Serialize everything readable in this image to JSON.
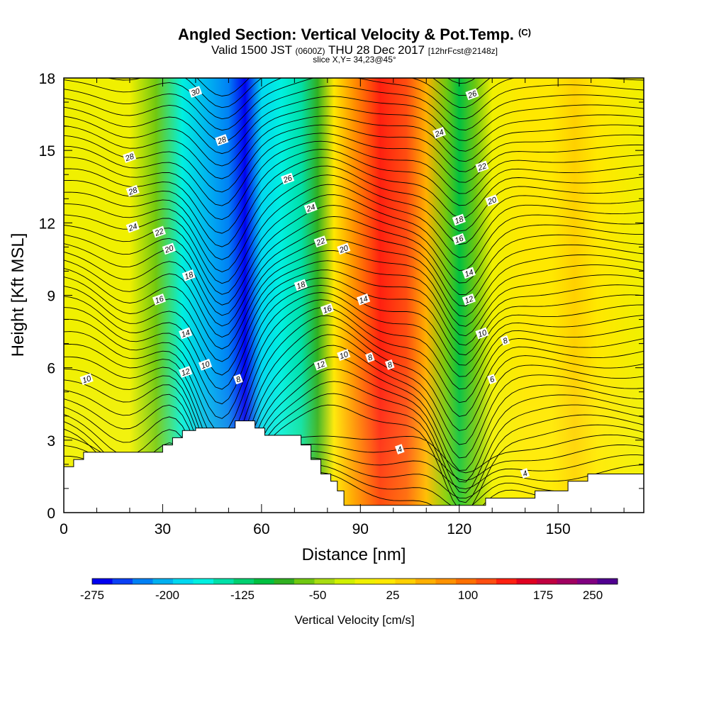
{
  "header": {
    "title": "Angled Section: Vertical Velocity & Pot.Temp.",
    "title_mark": "(C)",
    "valid_prefix": "Valid 1500 JST",
    "valid_z": "(0600Z)",
    "valid_date": "THU 28 Dec 2017",
    "forecast": "[12hrFcst@2148z]",
    "slice": "slice X,Y= 34,23@45°"
  },
  "chart_data": {
    "type": "heatmap",
    "title": "Angled Section: Vertical Velocity & Pot.Temp.",
    "xlabel": "Distance [nm]",
    "ylabel": "Height [Kft MSL]",
    "xlim": [
      0,
      176
    ],
    "ylim": [
      0,
      18
    ],
    "x_ticks": [
      0,
      30,
      60,
      90,
      120,
      150
    ],
    "y_ticks": [
      0,
      3,
      6,
      9,
      12,
      15,
      18
    ],
    "filled_field": "Vertical Velocity [cm/s]",
    "vertical_velocity_bands": [
      {
        "x": 0,
        "w": 5
      },
      {
        "x": 20,
        "w": 0
      },
      {
        "x": 28,
        "w": -60
      },
      {
        "x": 36,
        "w": -150
      },
      {
        "x": 44,
        "w": -195
      },
      {
        "x": 50,
        "w": -225
      },
      {
        "x": 55,
        "w": -275
      },
      {
        "x": 60,
        "w": -180
      },
      {
        "x": 66,
        "w": -150
      },
      {
        "x": 72,
        "w": -130
      },
      {
        "x": 77,
        "w": -75
      },
      {
        "x": 82,
        "w": 25
      },
      {
        "x": 88,
        "w": 100
      },
      {
        "x": 96,
        "w": 150
      },
      {
        "x": 104,
        "w": 140
      },
      {
        "x": 110,
        "w": 75
      },
      {
        "x": 116,
        "w": -50
      },
      {
        "x": 120,
        "w": -100
      },
      {
        "x": 125,
        "w": -50
      },
      {
        "x": 130,
        "w": 10
      },
      {
        "x": 140,
        "w": 30
      },
      {
        "x": 148,
        "w": 40
      },
      {
        "x": 155,
        "w": 60
      },
      {
        "x": 162,
        "w": 40
      },
      {
        "x": 176,
        "w": 10
      }
    ],
    "contour_field": "Potential Temperature (C)",
    "contour_labels": [
      {
        "x": 40,
        "y": 17.4,
        "v": "30"
      },
      {
        "x": 48,
        "y": 15.4,
        "v": "28"
      },
      {
        "x": 20,
        "y": 14.7,
        "v": "28"
      },
      {
        "x": 21,
        "y": 13.3,
        "v": "28"
      },
      {
        "x": 21,
        "y": 11.8,
        "v": "24"
      },
      {
        "x": 29,
        "y": 11.6,
        "v": "22"
      },
      {
        "x": 32,
        "y": 10.9,
        "v": "20"
      },
      {
        "x": 38,
        "y": 9.8,
        "v": "18"
      },
      {
        "x": 29,
        "y": 8.8,
        "v": "16"
      },
      {
        "x": 37,
        "y": 7.4,
        "v": "14"
      },
      {
        "x": 37,
        "y": 5.8,
        "v": "12"
      },
      {
        "x": 43,
        "y": 6.1,
        "v": "10"
      },
      {
        "x": 53,
        "y": 5.5,
        "v": "8"
      },
      {
        "x": 7,
        "y": 5.5,
        "v": "10"
      },
      {
        "x": 68,
        "y": 13.8,
        "v": "26"
      },
      {
        "x": 75,
        "y": 12.6,
        "v": "24"
      },
      {
        "x": 78,
        "y": 11.2,
        "v": "22"
      },
      {
        "x": 85,
        "y": 10.9,
        "v": "20"
      },
      {
        "x": 72,
        "y": 9.4,
        "v": "18"
      },
      {
        "x": 80,
        "y": 8.4,
        "v": "16"
      },
      {
        "x": 91,
        "y": 8.8,
        "v": "14"
      },
      {
        "x": 78,
        "y": 6.1,
        "v": "12"
      },
      {
        "x": 85,
        "y": 6.5,
        "v": "10"
      },
      {
        "x": 93,
        "y": 6.4,
        "v": "8"
      },
      {
        "x": 99,
        "y": 6.1,
        "v": "8"
      },
      {
        "x": 102,
        "y": 2.6,
        "v": "4"
      },
      {
        "x": 124,
        "y": 17.3,
        "v": "26"
      },
      {
        "x": 114,
        "y": 15.7,
        "v": "24"
      },
      {
        "x": 127,
        "y": 14.3,
        "v": "22"
      },
      {
        "x": 130,
        "y": 12.9,
        "v": "20"
      },
      {
        "x": 120,
        "y": 12.1,
        "v": "18"
      },
      {
        "x": 120,
        "y": 11.3,
        "v": "16"
      },
      {
        "x": 123,
        "y": 9.9,
        "v": "14"
      },
      {
        "x": 123,
        "y": 8.8,
        "v": "12"
      },
      {
        "x": 127,
        "y": 7.4,
        "v": "10"
      },
      {
        "x": 134,
        "y": 7.1,
        "v": "8"
      },
      {
        "x": 130,
        "y": 5.5,
        "v": "6"
      },
      {
        "x": 140,
        "y": 1.6,
        "v": "4"
      }
    ],
    "terrain_nm_kft": [
      [
        0,
        1.9
      ],
      [
        3,
        1.9
      ],
      [
        3,
        2.2
      ],
      [
        6,
        2.2
      ],
      [
        6,
        2.5
      ],
      [
        13,
        2.5
      ],
      [
        30,
        2.5
      ],
      [
        30,
        2.8
      ],
      [
        33,
        2.8
      ],
      [
        33,
        3.1
      ],
      [
        36,
        3.1
      ],
      [
        36,
        3.4
      ],
      [
        40,
        3.4
      ],
      [
        40,
        3.5
      ],
      [
        52,
        3.5
      ],
      [
        52,
        3.8
      ],
      [
        58,
        3.8
      ],
      [
        58,
        3.5
      ],
      [
        61,
        3.5
      ],
      [
        61,
        3.2
      ],
      [
        72,
        3.2
      ],
      [
        72,
        2.8
      ],
      [
        75,
        2.8
      ],
      [
        75,
        2.2
      ],
      [
        78,
        2.2
      ],
      [
        78,
        1.6
      ],
      [
        81,
        1.6
      ],
      [
        81,
        1.3
      ],
      [
        83,
        1.3
      ],
      [
        83,
        0.9
      ],
      [
        85,
        0.9
      ],
      [
        85,
        0.3
      ],
      [
        128,
        0.3
      ],
      [
        128,
        0.6
      ],
      [
        143,
        0.6
      ],
      [
        143,
        0.9
      ],
      [
        153,
        0.9
      ],
      [
        153,
        1.3
      ],
      [
        159,
        1.3
      ],
      [
        159,
        1.6
      ],
      [
        176,
        1.6
      ],
      [
        176,
        0
      ]
    ],
    "colorbar": {
      "label": "Vertical Velocity [cm/s]",
      "ticks": [
        "-275",
        "-200",
        "-125",
        "-50",
        "25",
        "100",
        "175",
        "250"
      ],
      "colors": [
        "#0000f0",
        "#0a40f5",
        "#0080f5",
        "#00b0f0",
        "#00d8f0",
        "#00f0e0",
        "#00e0a8",
        "#00d070",
        "#00c040",
        "#30b020",
        "#70c810",
        "#a8dc10",
        "#d0f000",
        "#f0f000",
        "#ffe800",
        "#ffd000",
        "#ffb000",
        "#ff9200",
        "#ff7000",
        "#ff4e10",
        "#ff2010",
        "#e00020",
        "#c00040",
        "#a00060",
        "#800080",
        "#500090"
      ]
    }
  }
}
